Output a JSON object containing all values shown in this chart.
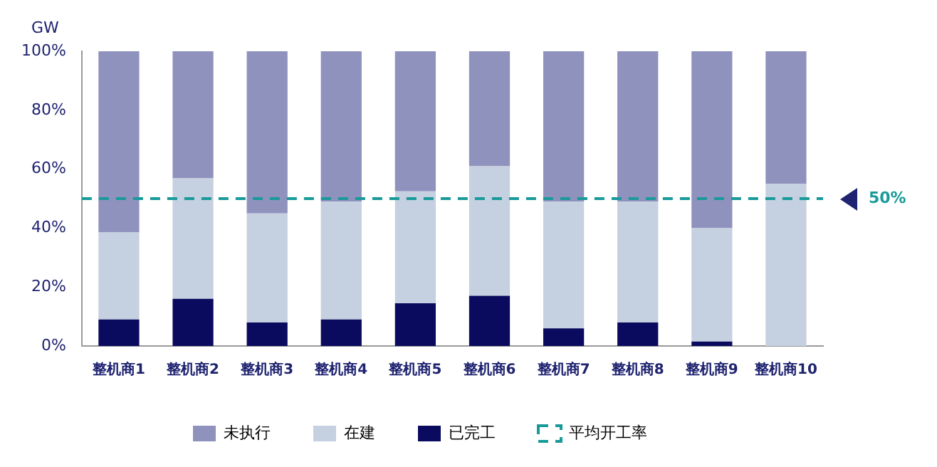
{
  "chart_data": {
    "type": "bar",
    "ylabel": "GW",
    "stacked": true,
    "legend": "bottom",
    "categories": [
      "整机商1",
      "整机商2",
      "整机商3",
      "整机商4",
      "整机商5",
      "整机商6",
      "整机商7",
      "整机商8",
      "整机商9",
      "整机商10"
    ],
    "series": [
      {
        "name": "已完工",
        "color": "#0a0a5e",
        "values": [
          9,
          16,
          8,
          9,
          14.5,
          17,
          6,
          8,
          1.5,
          0
        ]
      },
      {
        "name": "在建",
        "color": "#c5d0e0",
        "values": [
          29.5,
          41,
          37,
          40,
          38,
          44,
          43,
          41,
          38.5,
          55
        ]
      },
      {
        "name": "未执行",
        "color": "#8f92bd",
        "values": [
          61.5,
          43,
          55,
          51,
          47.5,
          39,
          51,
          51,
          60,
          45
        ]
      }
    ],
    "ylim": [
      0,
      100
    ],
    "yticks": [
      {
        "value": 0,
        "label": "0%"
      },
      {
        "value": 20,
        "label": "20%"
      },
      {
        "value": 40,
        "label": "40%"
      },
      {
        "value": 60,
        "label": "60%"
      },
      {
        "value": 80,
        "label": "80%"
      },
      {
        "value": 100,
        "label": "100%"
      }
    ],
    "ref_lines": [
      {
        "axis": "y",
        "value": 50,
        "label": "平均开工率",
        "color": "#1a9a9a",
        "line_style": "dashed"
      }
    ],
    "annotations": [
      "50%"
    ]
  }
}
